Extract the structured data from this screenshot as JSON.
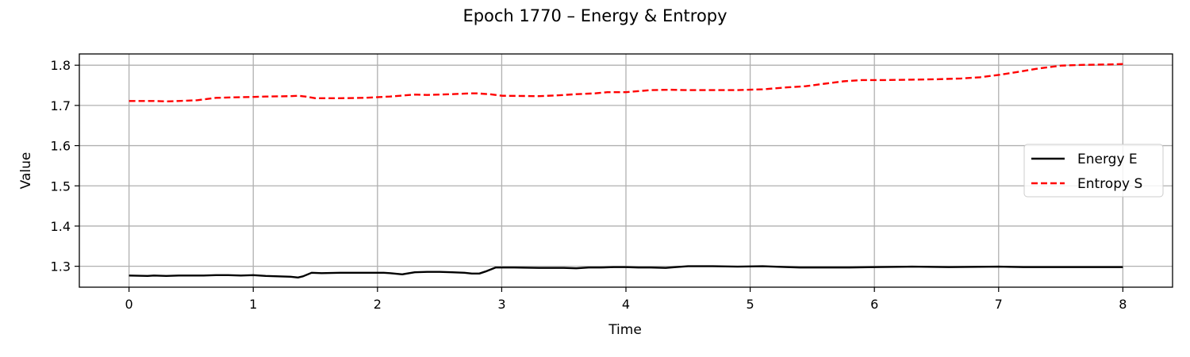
{
  "chart_data": {
    "type": "line",
    "title": "Epoch 1770 – Energy & Entropy",
    "xlabel": "Time",
    "ylabel": "Value",
    "xlim": [
      -0.4,
      8.4
    ],
    "ylim": [
      1.248,
      1.828
    ],
    "xticks": [
      0,
      1,
      2,
      3,
      4,
      5,
      6,
      7,
      8
    ],
    "yticks": [
      1.3,
      1.4,
      1.5,
      1.6,
      1.7,
      1.8
    ],
    "grid": true,
    "legend_position": "center-right",
    "series": [
      {
        "name": "Energy E",
        "color": "#000000",
        "dash": "solid",
        "x": [
          0,
          0.15,
          0.2,
          0.3,
          0.4,
          0.5,
          0.6,
          0.7,
          0.8,
          0.9,
          1.0,
          1.1,
          1.2,
          1.3,
          1.36,
          1.4,
          1.47,
          1.55,
          1.7,
          1.9,
          2.05,
          2.1,
          2.2,
          2.3,
          2.4,
          2.5,
          2.6,
          2.7,
          2.76,
          2.82,
          2.87,
          2.95,
          3.1,
          3.3,
          3.5,
          3.6,
          3.7,
          3.8,
          3.9,
          4.0,
          4.1,
          4.2,
          4.32,
          4.4,
          4.5,
          4.7,
          4.9,
          5.1,
          5.3,
          5.4,
          5.6,
          5.8,
          6.0,
          6.3,
          6.6,
          7.0,
          7.2,
          7.5,
          8.0
        ],
        "y": [
          1.277,
          1.276,
          1.277,
          1.276,
          1.277,
          1.277,
          1.277,
          1.278,
          1.278,
          1.277,
          1.278,
          1.276,
          1.275,
          1.274,
          1.272,
          1.275,
          1.284,
          1.283,
          1.284,
          1.284,
          1.284,
          1.283,
          1.28,
          1.285,
          1.286,
          1.286,
          1.285,
          1.284,
          1.282,
          1.282,
          1.287,
          1.297,
          1.297,
          1.296,
          1.296,
          1.295,
          1.297,
          1.297,
          1.298,
          1.298,
          1.297,
          1.297,
          1.296,
          1.298,
          1.3,
          1.3,
          1.299,
          1.3,
          1.298,
          1.297,
          1.297,
          1.297,
          1.298,
          1.299,
          1.298,
          1.299,
          1.298,
          1.298,
          1.298
        ]
      },
      {
        "name": "Entropy S",
        "color": "#ff0000",
        "dash": "dashed",
        "x": [
          0,
          0.2,
          0.3,
          0.4,
          0.55,
          0.7,
          0.85,
          1.0,
          1.1,
          1.3,
          1.36,
          1.42,
          1.5,
          1.7,
          1.9,
          2.1,
          2.3,
          2.4,
          2.6,
          2.75,
          2.8,
          2.9,
          3.0,
          3.3,
          3.45,
          3.6,
          3.75,
          3.85,
          4.0,
          4.2,
          4.35,
          4.5,
          4.7,
          4.9,
          5.1,
          5.3,
          5.45,
          5.6,
          5.75,
          5.9,
          6.1,
          6.3,
          6.5,
          6.7,
          6.85,
          7.0,
          7.15,
          7.3,
          7.5,
          7.7,
          7.9,
          8.0
        ],
        "y": [
          1.711,
          1.711,
          1.71,
          1.711,
          1.713,
          1.719,
          1.72,
          1.721,
          1.722,
          1.723,
          1.724,
          1.722,
          1.718,
          1.718,
          1.719,
          1.722,
          1.727,
          1.726,
          1.728,
          1.73,
          1.73,
          1.728,
          1.724,
          1.723,
          1.725,
          1.728,
          1.73,
          1.733,
          1.733,
          1.738,
          1.739,
          1.738,
          1.738,
          1.738,
          1.74,
          1.745,
          1.748,
          1.754,
          1.76,
          1.763,
          1.763,
          1.764,
          1.765,
          1.767,
          1.77,
          1.776,
          1.783,
          1.791,
          1.799,
          1.801,
          1.802,
          1.803
        ]
      }
    ]
  }
}
